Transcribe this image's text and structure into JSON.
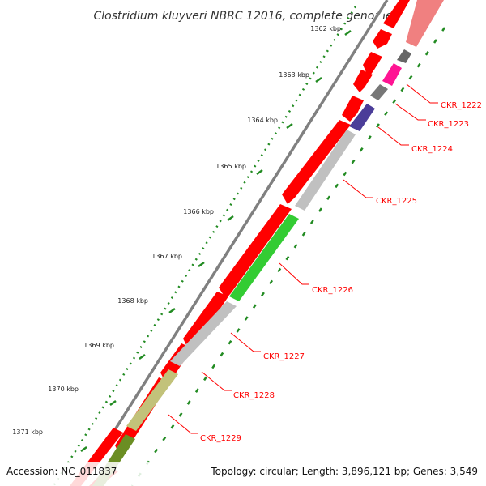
{
  "title": "Clostridium kluyveri NBRC 12016, complete genome",
  "footer": {
    "accession": "Accession: NC_011837",
    "topology": "Topology: circular; Length: 3,896,121 bp; Genes: 3,549"
  },
  "ticks": [
    {
      "label": "1362 kbp"
    },
    {
      "label": "1363 kbp"
    },
    {
      "label": "1364 kbp"
    },
    {
      "label": "1365 kbp"
    },
    {
      "label": "1366 kbp"
    },
    {
      "label": "1367 kbp"
    },
    {
      "label": "1368 kbp"
    },
    {
      "label": "1369 kbp"
    },
    {
      "label": "1370 kbp"
    },
    {
      "label": "1371 kbp"
    }
  ],
  "genes": [
    {
      "label": "CKR_1222"
    },
    {
      "label": "CKR_1223"
    },
    {
      "label": "CKR_1224"
    },
    {
      "label": "CKR_1225"
    },
    {
      "label": "CKR_1226"
    },
    {
      "label": "CKR_1227"
    },
    {
      "label": "CKR_1228"
    },
    {
      "label": "CKR_1229"
    }
  ],
  "colors": {
    "cds_forward": "#ff0000",
    "backbone": "#808080",
    "label_line": "#ff0000",
    "tick_dots": "#228b22",
    "gene_colors": [
      "#ff3399",
      "#777777",
      "#4b3d99",
      "#c0c0c0",
      "#33cc33",
      "#c0c0c0",
      "#c2c27a",
      "#6b8e23"
    ]
  }
}
